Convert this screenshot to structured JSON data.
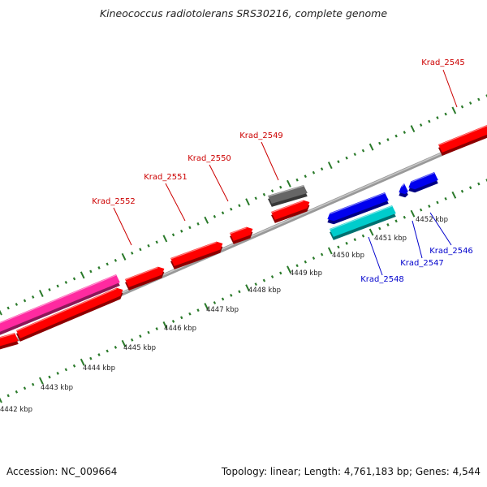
{
  "title": "Kineococcus radiotolerans SRS30216, complete genome",
  "footer": {
    "accession": "Accession: NC_009664",
    "summary": "Topology: linear; Length: 4,761,183 bp; Genes: 4,544"
  },
  "colors": {
    "backbone": "#888888",
    "tick": "#2a7a2a",
    "red_gene": "#ff0000",
    "red_label": "#cc0000",
    "blue_gene": "#0000ee",
    "blue_label": "#0000cc",
    "cyan_gene": "#00cccc",
    "magenta_gene": "#ff2aa0",
    "gray_gene": "#666666"
  },
  "kbp_labels": [
    "4442 kbp",
    "4443 kbp",
    "4444 kbp",
    "4445 kbp",
    "4446 kbp",
    "4447 kbp",
    "4448 kbp",
    "4449 kbp",
    "4450 kbp",
    "4451 kbp",
    "4452 kbp"
  ],
  "gene_labels_top": [
    {
      "id": "Krad_2552",
      "text": "Krad_2552"
    },
    {
      "id": "Krad_2551",
      "text": "Krad_2551"
    },
    {
      "id": "Krad_2550",
      "text": "Krad_2550"
    },
    {
      "id": "Krad_2549",
      "text": "Krad_2549"
    },
    {
      "id": "Krad_2545",
      "text": "Krad_2545"
    }
  ],
  "gene_labels_bottom": [
    {
      "id": "Krad_2548",
      "text": "Krad_2548"
    },
    {
      "id": "Krad_2547",
      "text": "Krad_2547"
    },
    {
      "id": "Krad_2546",
      "text": "Krad_2546"
    }
  ]
}
